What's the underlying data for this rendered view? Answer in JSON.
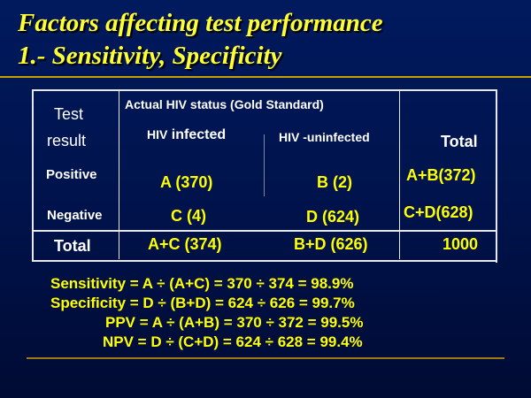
{
  "title": {
    "line1": "Factors affecting test performance",
    "line2": "1.- Sensitivity, Specificity"
  },
  "table": {
    "test_result_line1": "Test",
    "test_result_line2": "result",
    "gold_standard_header": "Actual HIV status (Gold Standard)",
    "infected_prefix": "HIV",
    "infected_suffix": " infected",
    "uninfected_header": "HIV -uninfected",
    "total_header": "Total",
    "positive_label": "Positive",
    "negative_label": "Negative",
    "total_label": "Total",
    "cell_a": "A (370)",
    "cell_b": "B (2)",
    "cell_ab": "A+B(372)",
    "cell_c": "C (4)",
    "cell_d": "D (624)",
    "cell_cd": "C+D(628)",
    "cell_ac": "A+C (374)",
    "cell_bd": "B+D (626)",
    "cell_total": "1000"
  },
  "formulas": {
    "sensitivity": "Sensitivity = A ÷ (A+C) = 370 ÷ 374 = 98.9%",
    "specificity": "Specificity = D ÷ (B+D) = 624 ÷ 626 = 99.7%",
    "ppv": "PPV = A ÷ (A+B) = 370 ÷ 372 = 99.5%",
    "npv": "NPV = D ÷ (C+D) = 624 ÷ 628 = 99.4%"
  },
  "colors": {
    "background": "#001a5e",
    "title": "#ffff33",
    "text": "#ffffff",
    "formulas": "#ffff00",
    "rule": "#c8a000"
  }
}
